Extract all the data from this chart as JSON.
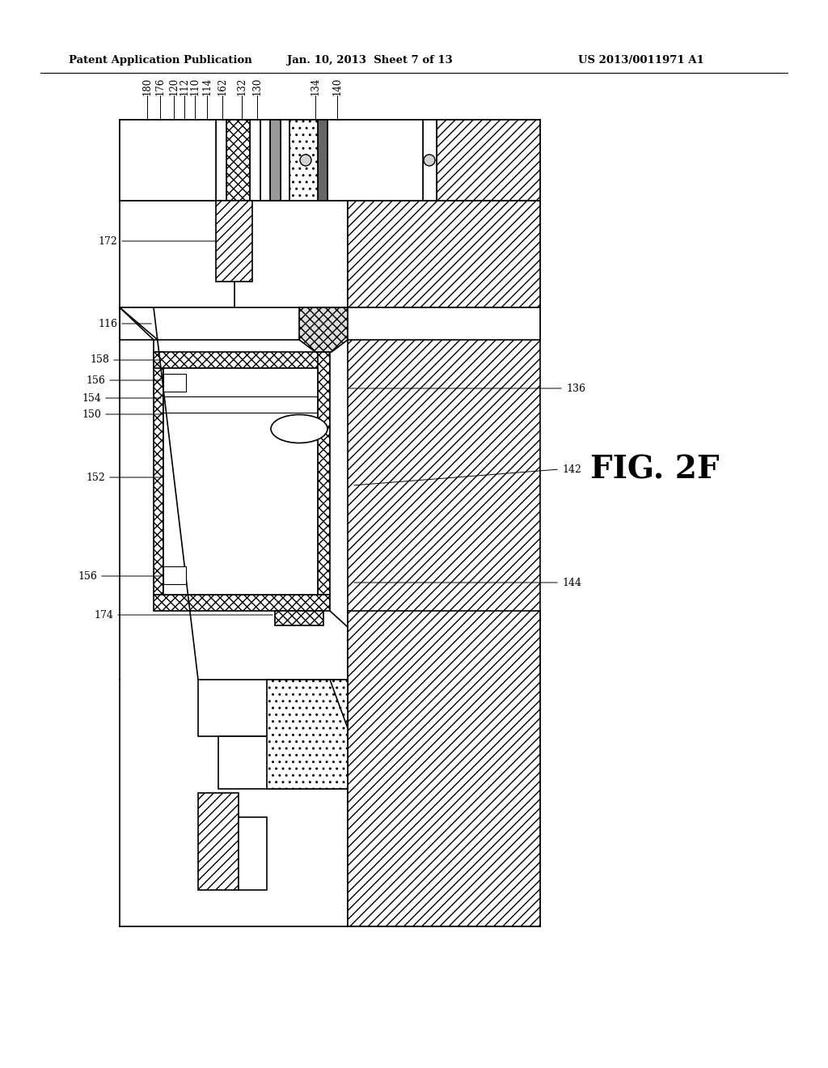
{
  "title_left": "Patent Application Publication",
  "title_center": "Jan. 10, 2013  Sheet 7 of 13",
  "title_right": "US 2013/0011971 A1",
  "fig_label": "FIG. 2F",
  "bg_color": "#ffffff",
  "line_color": "#000000"
}
